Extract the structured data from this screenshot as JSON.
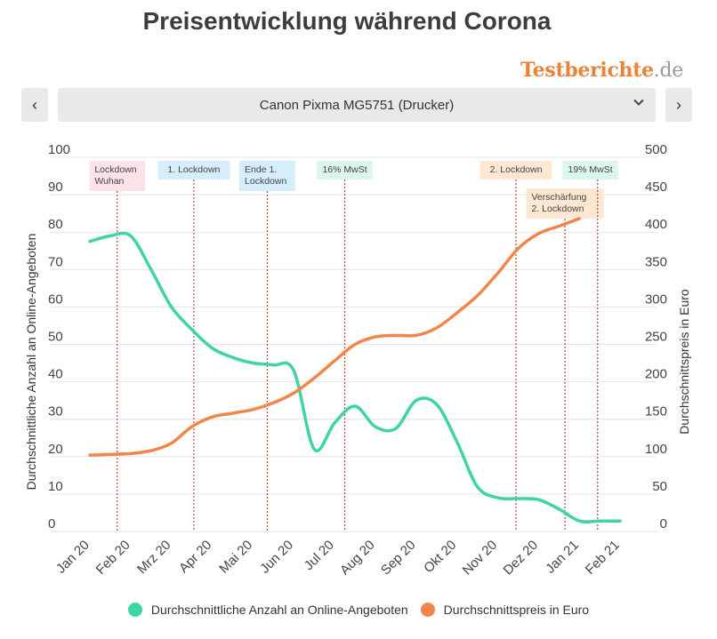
{
  "header": {
    "title": "Preisentwicklung während Corona",
    "brand_name": "Testberichte",
    "brand_tld": ".de"
  },
  "selector": {
    "prev_label": "‹",
    "next_label": "›",
    "selected": "Canon Pixma MG5751 (Drucker)",
    "chevron_icon": "chevron-down-icon"
  },
  "colors": {
    "offers": "#3fd4a0",
    "price": "#f0874a",
    "event_line": "#b9483a"
  },
  "chart_data": {
    "type": "line",
    "categories": [
      "Jan 20",
      "Feb 20",
      "Mrz 20",
      "Apr 20",
      "Mai 20",
      "Jun 20",
      "Jul 20",
      "Aug 20",
      "Sep 20",
      "Okt 20",
      "Nov 20",
      "Dez 20",
      "Jan 21",
      "Feb 21"
    ],
    "y_left": {
      "label": "Durchschnittliche Anzahl an Online-Angeboten",
      "range": [
        0,
        100
      ],
      "ticks": [
        "0",
        "10",
        "20",
        "30",
        "40",
        "50",
        "60",
        "70",
        "80",
        "90",
        "100"
      ]
    },
    "y_right": {
      "label": "Durchschnittspreis in Euro",
      "range": [
        0,
        500
      ],
      "ticks": [
        "0",
        "50",
        "100",
        "150",
        "200",
        "250",
        "300",
        "350",
        "400",
        "450",
        "500"
      ]
    },
    "grid": true,
    "series": [
      {
        "name": "Durchschnittliche Anzahl an Online-Angeboten",
        "axis": "left",
        "color": "#3fd4a0",
        "x": [
          0,
          0.5,
          1,
          1.5,
          2,
          2.5,
          3,
          3.5,
          4,
          4.5,
          5,
          5.5,
          6,
          6.5,
          7,
          7.5,
          8,
          8.5,
          9,
          9.5,
          10,
          10.5,
          11,
          11.5,
          12,
          12.5,
          13
        ],
        "values": [
          77.5,
          79,
          79,
          70,
          60,
          54,
          49,
          46.5,
          45,
          44.5,
          43,
          22,
          29,
          33.5,
          28,
          27.5,
          35,
          34,
          24,
          12,
          9,
          8.8,
          8.5,
          6,
          2.8,
          2.8,
          2.8
        ]
      },
      {
        "name": "Durchschnittspreis in Euro",
        "axis": "right",
        "color": "#f0874a",
        "x": [
          0,
          0.5,
          1,
          1.5,
          2,
          2.5,
          3,
          3.5,
          4,
          4.5,
          5,
          5.5,
          6,
          6.5,
          7,
          7.5,
          8,
          8.5,
          9,
          9.5,
          10,
          10.5,
          11,
          11.5,
          12
        ],
        "values": [
          102,
          103,
          104,
          108,
          118,
          140,
          153,
          158,
          163,
          172,
          185,
          205,
          228,
          250,
          260,
          262,
          262,
          272,
          292,
          315,
          345,
          378,
          398,
          408,
          418
        ]
      }
    ],
    "events": [
      {
        "x": 0.67,
        "label": [
          "Lockdown",
          "Wuhan"
        ],
        "color": "#fde3e7",
        "row": 0
      },
      {
        "x": 2.55,
        "label": [
          "1. Lockdown"
        ],
        "color": "#d6eefc",
        "row": 0
      },
      {
        "x": 4.35,
        "label": [
          "Ende 1.",
          "Lockdown"
        ],
        "color": "#d6eefc",
        "row": 0
      },
      {
        "x": 6.25,
        "label": [
          "16% MwSt"
        ],
        "color": "#dcf6ea",
        "row": 0
      },
      {
        "x": 10.45,
        "label": [
          "2. Lockdown"
        ],
        "color": "#fde9d3",
        "row": 0
      },
      {
        "x": 11.65,
        "label": [
          "Verschärfung",
          "2. Lockdown"
        ],
        "color": "#fde9d3",
        "row": 1
      },
      {
        "x": 12.45,
        "label": [
          "19% MwSt"
        ],
        "color": "#dcf6ea",
        "row": 0
      }
    ]
  },
  "legend": {
    "offers_label": "Durchschnittliche Anzahl an Online-Angeboten",
    "price_label": "Durchschnittspreis in Euro"
  }
}
